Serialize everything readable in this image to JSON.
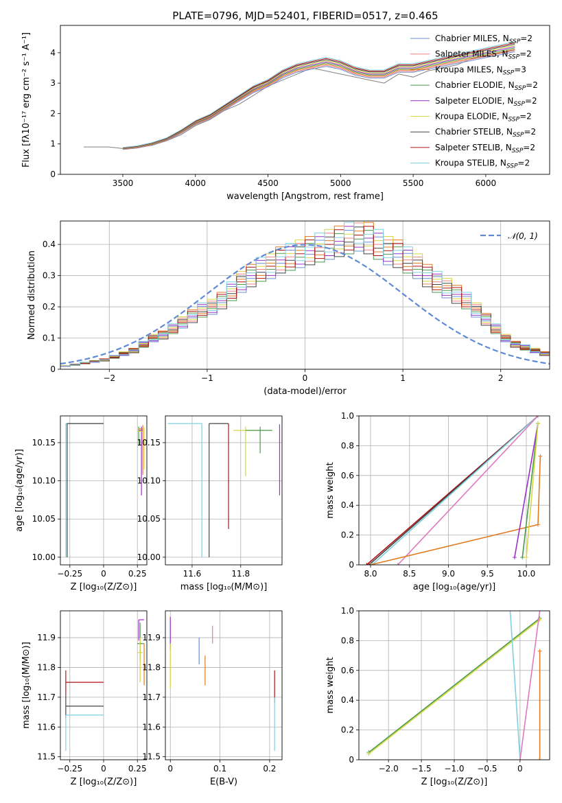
{
  "figure": {
    "title": "PLATE=0796, MJD=52401, FIBERID=0517, z=0.465"
  },
  "legend": [
    {
      "name": "Chabrier MILES",
      "suffix": "=2",
      "color": "#6b8ed6"
    },
    {
      "name": "Salpeter MILES",
      "suffix": "=2",
      "color": "#f08080"
    },
    {
      "name": "Kroupa MILES",
      "suffix": "=3",
      "color": "#e07b20"
    },
    {
      "name": "Chabrier ELODIE",
      "suffix": "=2",
      "color": "#4a9a4a"
    },
    {
      "name": "Salpeter ELODIE",
      "suffix": "=2",
      "color": "#9b30c8"
    },
    {
      "name": "Kroupa ELODIE",
      "suffix": "=2",
      "color": "#d6d640"
    },
    {
      "name": "Chabrier STELIB",
      "suffix": "=2",
      "color": "#444444"
    },
    {
      "name": "Salpeter STELIB",
      "suffix": "=2",
      "color": "#b01010"
    },
    {
      "name": "Kroupa STELIB",
      "suffix": "=2",
      "color": "#7fd0e0"
    }
  ],
  "chart_data": [
    {
      "id": "spectrum",
      "type": "line",
      "xlabel": "wavelength [Angstrom, rest frame]",
      "ylabel": "Flux [fλ10⁻¹⁷ erg cm⁻² s⁻¹ A⁻¹]",
      "xlim": [
        3070,
        6440
      ],
      "ylim": [
        0,
        4.9
      ],
      "xticks": [
        3500,
        4000,
        4500,
        5000,
        5500,
        6000
      ],
      "yticks": [
        0,
        1,
        2,
        3,
        4
      ],
      "data_color": "#808080",
      "data_x": [
        3230,
        3400,
        3500,
        3600,
        3700,
        3800,
        3900,
        4000,
        4100,
        4200,
        4300,
        4400,
        4500,
        4600,
        4700,
        4800,
        4900,
        5000,
        5100,
        5200,
        5300,
        5400,
        5500,
        5600,
        5700,
        5800,
        5900,
        6000,
        6100,
        6200
      ],
      "data_y": [
        0.9,
        0.9,
        0.85,
        0.9,
        0.95,
        1.1,
        1.3,
        1.6,
        1.8,
        2.1,
        2.3,
        2.6,
        2.9,
        3.1,
        3.3,
        3.5,
        3.4,
        3.3,
        3.2,
        3.1,
        3.0,
        3.3,
        3.2,
        3.4,
        3.5,
        3.6,
        3.8,
        3.9,
        4.0,
        4.1
      ],
      "model_x": [
        3500,
        3600,
        3700,
        3800,
        3900,
        4000,
        4100,
        4200,
        4300,
        4400,
        4500,
        4600,
        4700,
        4800,
        4900,
        5000,
        5100,
        5200,
        5300,
        5400,
        5500,
        5600,
        5700,
        5800,
        5900,
        6000,
        6100,
        6200
      ],
      "model_y": [
        0.85,
        0.9,
        1.0,
        1.15,
        1.4,
        1.7,
        1.9,
        2.2,
        2.5,
        2.8,
        3.0,
        3.3,
        3.5,
        3.6,
        3.7,
        3.6,
        3.4,
        3.3,
        3.3,
        3.5,
        3.5,
        3.6,
        3.7,
        3.8,
        3.9,
        4.0,
        4.1,
        4.2
      ]
    },
    {
      "id": "residuals",
      "type": "histogram",
      "xlabel": "(data-model)/error",
      "ylabel": "Normed distribution",
      "xlim": [
        -2.5,
        2.5
      ],
      "ylim": [
        0,
        0.475
      ],
      "xticks": [
        -2,
        -1,
        0,
        1,
        2
      ],
      "yticks": [
        0.0,
        0.1,
        0.2,
        0.3,
        0.4
      ],
      "gauss_label": "𝒩(0, 1)",
      "gauss_color": "#5f8ad6",
      "bin_width": 0.1,
      "bins_start": -2.5,
      "counts": [
        0.01,
        0.015,
        0.02,
        0.025,
        0.03,
        0.04,
        0.05,
        0.06,
        0.08,
        0.1,
        0.11,
        0.13,
        0.15,
        0.17,
        0.19,
        0.2,
        0.22,
        0.25,
        0.28,
        0.3,
        0.32,
        0.33,
        0.35,
        0.36,
        0.37,
        0.38,
        0.39,
        0.4,
        0.41,
        0.42,
        0.43,
        0.42,
        0.4,
        0.38,
        0.37,
        0.35,
        0.33,
        0.3,
        0.28,
        0.26,
        0.24,
        0.22,
        0.19,
        0.16,
        0.13,
        0.1,
        0.08,
        0.07,
        0.06,
        0.05
      ]
    },
    {
      "id": "age-vs-Z",
      "type": "errorbar",
      "xlabel": "Z [log₁₀(Z/Z⊙)]",
      "ylabel": "age  [log₁₀(age/yr)]",
      "xlim": [
        -0.32,
        0.32
      ],
      "ylim": [
        9.99,
        10.185
      ],
      "xticks": [
        -0.25,
        0.0,
        0.25
      ],
      "yticks": [
        10.0,
        10.05,
        10.1,
        10.15
      ],
      "points": [
        {
          "x": -0.28,
          "y": 10.175,
          "xerr": [
            0,
            0.28
          ],
          "yerr": [
            0.175,
            0
          ],
          "color": "#7fd0e0"
        },
        {
          "x": -0.27,
          "y": 10.175,
          "xerr": [
            0.0,
            0.27
          ],
          "yerr": [
            0.175,
            0
          ],
          "color": "#444444"
        },
        {
          "x": 0.26,
          "y": 10.166,
          "xerr": [
            0,
            0.03
          ],
          "yerr": [
            0.02,
            0.005
          ],
          "color": "#4a9a4a"
        },
        {
          "x": 0.28,
          "y": 10.166,
          "xerr": [
            0.02,
            0.01
          ],
          "yerr": [
            0.085,
            0.005
          ],
          "color": "#9b30c8"
        },
        {
          "x": 0.29,
          "y": 10.168,
          "xerr": [
            0.03,
            0.0
          ],
          "yerr": [
            0.06,
            0.005
          ],
          "color": "#e07b20"
        },
        {
          "x": 0.3,
          "y": 10.165,
          "xerr": [
            0.05,
            0.0
          ],
          "yerr": [
            0.05,
            0.005
          ],
          "color": "#d6d640"
        }
      ]
    },
    {
      "id": "age-vs-mass",
      "type": "errorbar",
      "xlabel": "mass [log₁₀(M/M⊙)]",
      "ylabel": "",
      "xlim": [
        11.49,
        11.97
      ],
      "ylim": [
        9.99,
        10.185
      ],
      "xticks": [
        11.6,
        11.8
      ],
      "yticks": [
        10.0,
        10.05,
        10.1,
        10.15
      ],
      "points": [
        {
          "x": 11.64,
          "y": 10.175,
          "xerr": [
            0.14,
            0
          ],
          "yerr": [
            0.175,
            0
          ],
          "color": "#7fd0e0"
        },
        {
          "x": 11.67,
          "y": 10.175,
          "xerr": [
            0.0,
            0.08
          ],
          "yerr": [
            0.175,
            0
          ],
          "color": "#444444"
        },
        {
          "x": 11.75,
          "y": 10.175,
          "xerr": [
            0.0,
            0.0
          ],
          "yerr": [
            0.138,
            0
          ],
          "color": "#b01010"
        },
        {
          "x": 11.82,
          "y": 10.166,
          "xerr": [
            0.05,
            0.06
          ],
          "yerr": [
            0.06,
            0.005
          ],
          "color": "#d6d640"
        },
        {
          "x": 11.88,
          "y": 10.166,
          "xerr": [
            0.06,
            0.05
          ],
          "yerr": [
            0.03,
            0.005
          ],
          "color": "#4a9a4a"
        },
        {
          "x": 11.96,
          "y": 10.166,
          "xerr": [
            0.0,
            0.0
          ],
          "yerr": [
            0.085,
            0.008
          ],
          "color": "#9b30c8"
        }
      ]
    },
    {
      "id": "weight-vs-age",
      "type": "line",
      "xlabel": "age  [log₁₀(age/yr)]",
      "ylabel": "mass weight",
      "xlim": [
        7.85,
        10.3
      ],
      "ylim": [
        0.0,
        1.0
      ],
      "xticks": [
        8.0,
        8.5,
        9.0,
        9.5,
        10.0
      ],
      "yticks": [
        0.0,
        0.2,
        0.4,
        0.6,
        0.8,
        1.0
      ],
      "lines": [
        {
          "x": [
            7.95,
            10.15
          ],
          "y": [
            0.0,
            1.0
          ],
          "color": "#b01010"
        },
        {
          "x": [
            7.98,
            10.15
          ],
          "y": [
            0.0,
            1.0
          ],
          "color": "#444444"
        },
        {
          "x": [
            8.02,
            10.15
          ],
          "y": [
            0.0,
            1.0
          ],
          "color": "#7fd0e0"
        },
        {
          "x": [
            8.35,
            10.15
          ],
          "y": [
            0.0,
            1.0
          ],
          "color": "#e078c0"
        },
        {
          "x": [
            8.0,
            10.15,
            10.18
          ],
          "y": [
            0.0,
            0.27,
            0.73
          ],
          "color": "#e07b20"
        },
        {
          "x": [
            9.85,
            10.15
          ],
          "y": [
            0.05,
            0.95
          ],
          "color": "#9b30c8"
        },
        {
          "x": [
            9.95,
            10.15
          ],
          "y": [
            0.05,
            0.95
          ],
          "color": "#4a9a4a"
        },
        {
          "x": [
            10.0,
            10.15
          ],
          "y": [
            0.05,
            0.95
          ],
          "color": "#d6d640"
        }
      ]
    },
    {
      "id": "mass-vs-Z",
      "type": "errorbar",
      "xlabel": "Z [log₁₀(Z/Z⊙)]",
      "ylabel": "mass [log₁₀(M/M⊙)]",
      "xlim": [
        -0.32,
        0.32
      ],
      "ylim": [
        11.49,
        11.99
      ],
      "xticks": [
        -0.25,
        0.0,
        0.25
      ],
      "yticks": [
        11.5,
        11.6,
        11.7,
        11.8,
        11.9
      ],
      "points": [
        {
          "x": -0.28,
          "y": 11.75,
          "xerr": [
            0,
            0.28
          ],
          "yerr": [
            0.04,
            0.04
          ],
          "color": "#b01010"
        },
        {
          "x": -0.28,
          "y": 11.67,
          "xerr": [
            0,
            0.28
          ],
          "yerr": [
            0.04,
            0.04
          ],
          "color": "#444444"
        },
        {
          "x": -0.28,
          "y": 11.64,
          "xerr": [
            0,
            0.28
          ],
          "yerr": [
            0.12,
            0.0
          ],
          "color": "#7fd0e0"
        },
        {
          "x": 0.26,
          "y": 11.96,
          "xerr": [
            0.0,
            0.04
          ],
          "yerr": [
            0.07,
            0.0
          ],
          "color": "#9b30c8"
        },
        {
          "x": 0.27,
          "y": 11.88,
          "xerr": [
            0.02,
            0.03
          ],
          "yerr": [
            0.06,
            0.07
          ],
          "color": "#4a9a4a"
        },
        {
          "x": 0.27,
          "y": 11.85,
          "xerr": [
            0.02,
            0.02
          ],
          "yerr": [
            0.1,
            0.05
          ],
          "color": "#d6d640"
        },
        {
          "x": 0.3,
          "y": 11.82,
          "xerr": [
            0.0,
            0.0
          ],
          "yerr": [
            0.08,
            0.06
          ],
          "color": "#e07b20"
        }
      ]
    },
    {
      "id": "mass-vs-EBV",
      "type": "errorbar",
      "xlabel": "E(B-V)",
      "ylabel": "",
      "xlim": [
        -0.01,
        0.225
      ],
      "ylim": [
        11.49,
        11.99
      ],
      "xticks": [
        0.0,
        0.1,
        0.2
      ],
      "yticks": [
        11.5,
        11.6,
        11.7,
        11.8,
        11.9
      ],
      "points": [
        {
          "x": 0.0,
          "y": 11.9,
          "xerr": [
            0,
            0
          ],
          "yerr": [
            0.04,
            0.07
          ],
          "color": "#9b30c8"
        },
        {
          "x": 0.0,
          "y": 11.8,
          "xerr": [
            0,
            0
          ],
          "yerr": [
            0.07,
            0.08
          ],
          "color": "#d6d640"
        },
        {
          "x": 0.058,
          "y": 11.85,
          "xerr": [
            0,
            0
          ],
          "yerr": [
            0.04,
            0.05
          ],
          "color": "#6b8ed6"
        },
        {
          "x": 0.07,
          "y": 11.79,
          "xerr": [
            0,
            0
          ],
          "yerr": [
            0.05,
            0.05
          ],
          "color": "#e07b20"
        },
        {
          "x": 0.085,
          "y": 11.91,
          "xerr": [
            0,
            0
          ],
          "yerr": [
            0.03,
            0.03
          ],
          "color": "#e078c0"
        },
        {
          "x": 0.21,
          "y": 11.75,
          "xerr": [
            0,
            0
          ],
          "yerr": [
            0.07,
            0.04
          ],
          "color": "#b01010"
        },
        {
          "x": 0.21,
          "y": 11.6,
          "xerr": [
            0,
            0
          ],
          "yerr": [
            0.08,
            0.1
          ],
          "color": "#7fd0e0"
        }
      ]
    },
    {
      "id": "weight-vs-Z",
      "type": "line",
      "xlabel": "Z [log₁₀(Z/Z⊙)]",
      "ylabel": "mass weight",
      "xlim": [
        -2.45,
        0.45
      ],
      "ylim": [
        0.0,
        1.0
      ],
      "xticks": [
        -2.0,
        -1.5,
        -1.0,
        -0.5,
        0.0
      ],
      "yticks": [
        0.0,
        0.2,
        0.4,
        0.6,
        0.8,
        1.0
      ],
      "lines": [
        {
          "x": [
            -2.3,
            0.3
          ],
          "y": [
            0.05,
            0.95
          ],
          "color": "#4a9a4a"
        },
        {
          "x": [
            -2.3,
            0.3
          ],
          "y": [
            0.04,
            0.94
          ],
          "color": "#d6d640"
        },
        {
          "x": [
            -0.15,
            0.0
          ],
          "y": [
            1.0,
            0.0
          ],
          "color": "#7fd0e0"
        },
        {
          "x": [
            0.0,
            0.3
          ],
          "y": [
            0.0,
            1.0
          ],
          "color": "#e078c0"
        },
        {
          "x": [
            0.3,
            0.3
          ],
          "y": [
            0.0,
            0.73
          ],
          "color": "#e07b20"
        }
      ]
    }
  ]
}
